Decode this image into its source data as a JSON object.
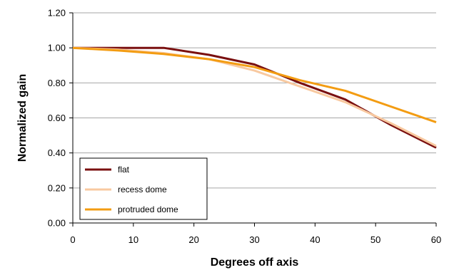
{
  "chart_data": {
    "type": "line",
    "xlabel": "Degrees off axis",
    "ylabel": "Normalized gain",
    "xlim": [
      0,
      60
    ],
    "ylim": [
      0,
      1.2
    ],
    "x_ticks": [
      "0",
      "10",
      "20",
      "30",
      "40",
      "50",
      "60"
    ],
    "y_ticks": [
      "0.00",
      "0.20",
      "0.40",
      "0.60",
      "0.80",
      "1.00",
      "1.20"
    ],
    "grid": "horizontal",
    "legend_position": "bottom-left",
    "series": [
      {
        "name": "flat",
        "color": "#7a0f0f",
        "x": [
          0,
          7.5,
          15,
          22.5,
          30,
          37.5,
          45,
          52.5,
          60
        ],
        "y": [
          1.0,
          1.0,
          1.0,
          0.96,
          0.905,
          0.8,
          0.705,
          0.56,
          0.43
        ]
      },
      {
        "name": "recess dome",
        "color": "#f8c9a0",
        "x": [
          0,
          7.5,
          15,
          22.5,
          30,
          37.5,
          45,
          52.5,
          60
        ],
        "y": [
          1.0,
          0.99,
          0.97,
          0.935,
          0.87,
          0.78,
          0.69,
          0.57,
          0.44
        ]
      },
      {
        "name": "protruded dome",
        "color": "#f39c12",
        "x": [
          0,
          7.5,
          15,
          22.5,
          30,
          37.5,
          45,
          52.5,
          60
        ],
        "y": [
          1.0,
          0.985,
          0.965,
          0.935,
          0.89,
          0.815,
          0.755,
          0.665,
          0.575
        ]
      }
    ]
  }
}
